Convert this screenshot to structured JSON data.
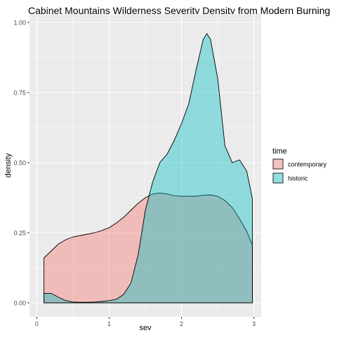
{
  "chart_data": {
    "type": "area",
    "title": "Cabinet Mountains Wilderness Severity Density from Modern Burning",
    "xlabel": "sev",
    "ylabel": "density",
    "xlim": [
      -0.1,
      3.1
    ],
    "ylim": [
      -0.05,
      1.03
    ],
    "x_ticks": [
      "0",
      "1",
      "2",
      "3"
    ],
    "y_ticks": [
      "0.00",
      "0.25",
      "0.50",
      "0.75",
      "1.00"
    ],
    "grid": true,
    "legend": {
      "title": "time",
      "placement": "right"
    },
    "series": [
      {
        "name": "contemporary",
        "color": "#F8766D",
        "x": [
          0.1,
          0.2,
          0.3,
          0.4,
          0.5,
          0.6,
          0.7,
          0.8,
          0.9,
          1.0,
          1.1,
          1.2,
          1.3,
          1.4,
          1.5,
          1.6,
          1.7,
          1.8,
          1.9,
          2.0,
          2.1,
          2.2,
          2.3,
          2.4,
          2.5,
          2.6,
          2.7,
          2.8,
          2.9,
          2.98
        ],
        "values": [
          0.16,
          0.185,
          0.21,
          0.225,
          0.235,
          0.24,
          0.245,
          0.25,
          0.258,
          0.268,
          0.285,
          0.305,
          0.33,
          0.355,
          0.375,
          0.388,
          0.392,
          0.388,
          0.382,
          0.38,
          0.38,
          0.38,
          0.384,
          0.385,
          0.38,
          0.365,
          0.34,
          0.3,
          0.255,
          0.205
        ]
      },
      {
        "name": "historic",
        "color": "#00BFC4",
        "x": [
          0.1,
          0.2,
          0.3,
          0.4,
          0.5,
          0.6,
          0.7,
          0.8,
          0.9,
          1.0,
          1.1,
          1.2,
          1.3,
          1.4,
          1.5,
          1.6,
          1.7,
          1.8,
          1.9,
          2.0,
          2.1,
          2.2,
          2.3,
          2.35,
          2.4,
          2.5,
          2.6,
          2.7,
          2.8,
          2.9,
          2.98
        ],
        "values": [
          0.034,
          0.034,
          0.02,
          0.008,
          0.003,
          0.002,
          0.002,
          0.003,
          0.005,
          0.008,
          0.013,
          0.03,
          0.07,
          0.17,
          0.33,
          0.43,
          0.5,
          0.53,
          0.58,
          0.64,
          0.71,
          0.83,
          0.94,
          0.96,
          0.94,
          0.8,
          0.56,
          0.5,
          0.51,
          0.47,
          0.37
        ]
      }
    ]
  }
}
